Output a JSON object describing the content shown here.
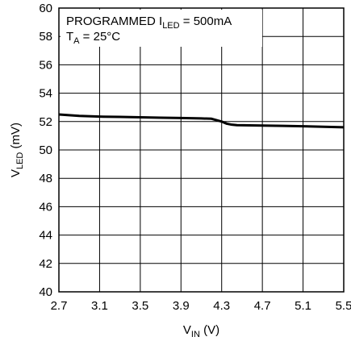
{
  "chart_data": {
    "type": "line",
    "xlim": [
      2.7,
      5.5
    ],
    "ylim": [
      40,
      60
    ],
    "x_ticks": [
      "2.7",
      "3.1",
      "3.5",
      "3.9",
      "4.3",
      "4.7",
      "5.1",
      "5.5"
    ],
    "y_ticks": [
      "40",
      "42",
      "44",
      "46",
      "48",
      "50",
      "52",
      "54",
      "56",
      "58",
      "60"
    ],
    "x_tick_values": [
      2.7,
      3.1,
      3.5,
      3.9,
      4.3,
      4.7,
      5.1,
      5.5
    ],
    "y_tick_values": [
      40,
      42,
      44,
      46,
      48,
      50,
      52,
      54,
      56,
      58,
      60
    ],
    "xlabel": {
      "main": "V",
      "sub": "IN",
      "rest": " (V)"
    },
    "ylabel": {
      "main": "V",
      "sub": "LED",
      "rest": " (mV)"
    },
    "annotation": {
      "line1_main": "PROGRAMMED I",
      "line1_sub": "LED",
      "line1_rest": " = 500mA",
      "line2_main": "T",
      "line2_sub": "A",
      "line2_rest": " = 25°C"
    },
    "grid": true,
    "series": [
      {
        "x": [
          2.7,
          2.8,
          2.9,
          3.1,
          3.3,
          3.5,
          3.7,
          3.9,
          4.1,
          4.2,
          4.25,
          4.3,
          4.35,
          4.4,
          4.45,
          4.7,
          4.9,
          5.1,
          5.3,
          5.5
        ],
        "y": [
          52.5,
          52.45,
          52.4,
          52.35,
          52.33,
          52.3,
          52.27,
          52.25,
          52.22,
          52.2,
          52.1,
          52.0,
          51.85,
          51.78,
          51.75,
          51.72,
          51.7,
          51.67,
          51.63,
          51.6
        ]
      }
    ]
  }
}
